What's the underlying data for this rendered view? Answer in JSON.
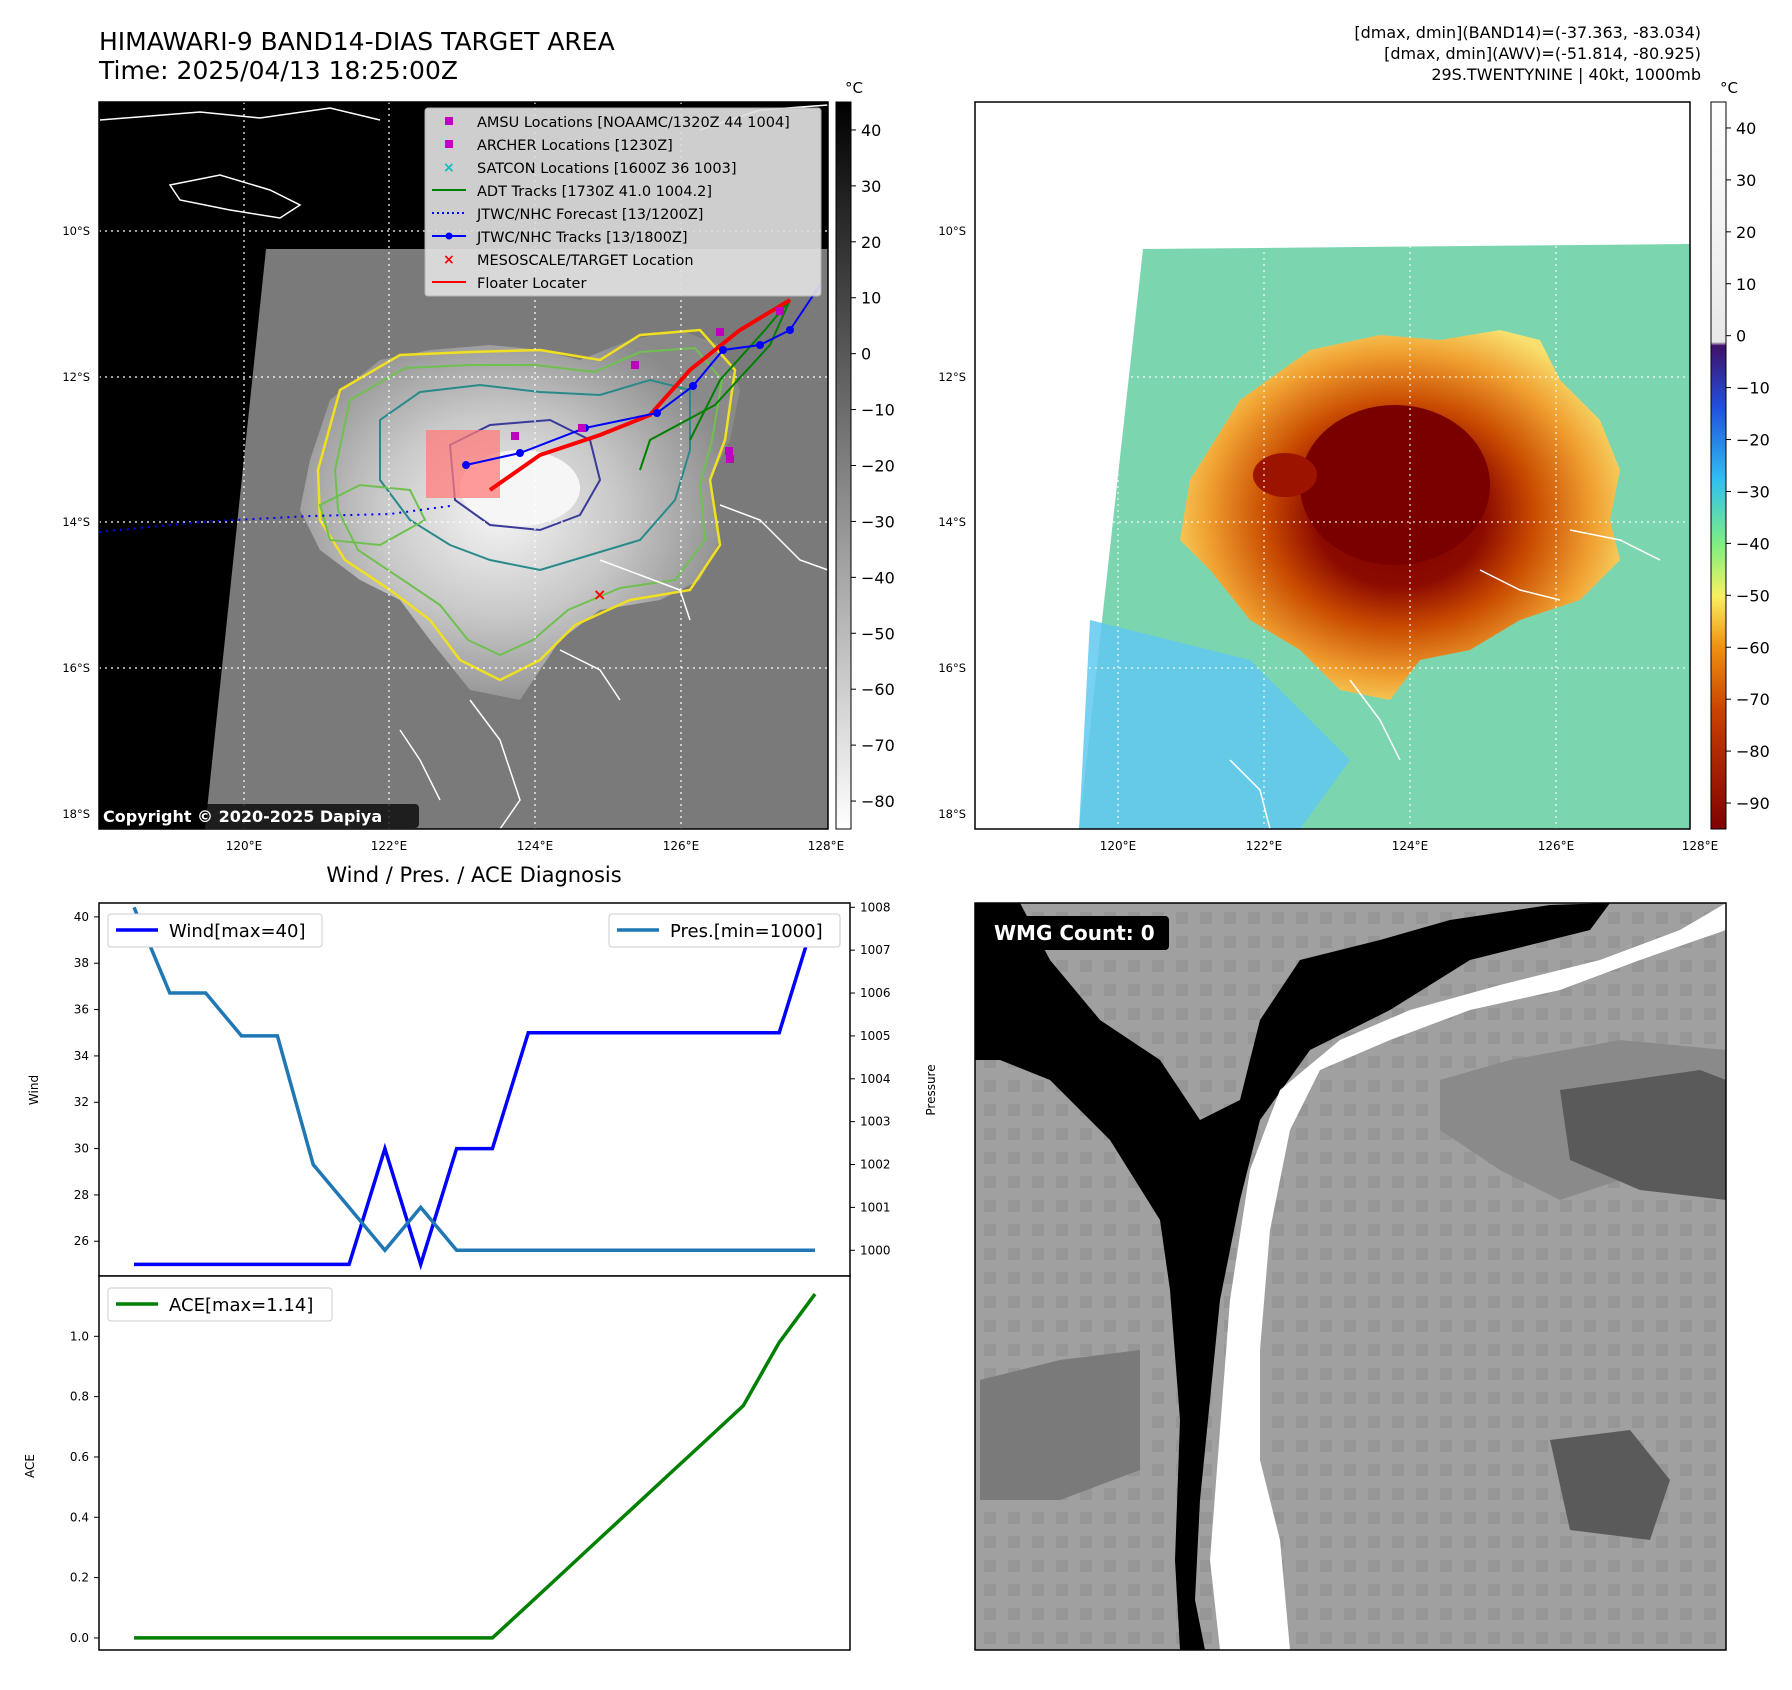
{
  "header": {
    "title": "HIMAWARI-9 BAND14-DIAS TARGET AREA",
    "time": "Time: 2025/04/13 18:25:00Z",
    "stats_band14": "[dmax, dmin](BAND14)=(-37.363, -83.034)",
    "stats_awv": "[dmax, dmin](AWV)=(-51.814, -80.925)",
    "storm_info": "29S.TWENTYNINE | 40kt, 1000mb",
    "copyright": "Copyright © 2020-2025 Dapiya"
  },
  "map": {
    "lat_labels": [
      "10°S",
      "12°S",
      "14°S",
      "16°S",
      "18°S"
    ],
    "lon_labels": [
      "120°E",
      "122°E",
      "124°E",
      "126°E",
      "128°E"
    ],
    "legend": [
      {
        "label": "AMSU Locations [NOAAMC/1320Z 44 1004]",
        "marker": "square",
        "color": "#c000c0"
      },
      {
        "label": "ARCHER Locations [1230Z]",
        "marker": "square",
        "color": "#c000c0"
      },
      {
        "label": "SATCON Locations [1600Z 36 1003]",
        "marker": "x",
        "color": "#00c0c0"
      },
      {
        "label": "ADT Tracks [1730Z 41.0 1004.2]",
        "marker": "line",
        "color": "#008000"
      },
      {
        "label": "JTWC/NHC Forecast [13/1200Z]",
        "marker": "dotted",
        "color": "#0000ff"
      },
      {
        "label": "JTWC/NHC Tracks [13/1800Z]",
        "marker": "line-dot",
        "color": "#0000ff"
      },
      {
        "label": "MESOSCALE/TARGET Location",
        "marker": "x",
        "color": "#ff0000"
      },
      {
        "label": "Floater Locater",
        "marker": "line",
        "color": "#ff0000"
      }
    ]
  },
  "colorbar_gray": {
    "unit": "°C",
    "ticks": [
      "40",
      "30",
      "20",
      "10",
      "0",
      "−10",
      "−20",
      "−30",
      "−40",
      "−50",
      "−60",
      "−70",
      "−80"
    ]
  },
  "colorbar_color": {
    "unit": "°C",
    "ticks": [
      "40",
      "30",
      "20",
      "10",
      "0",
      "−10",
      "−20",
      "−30",
      "−40",
      "−50",
      "−60",
      "−70",
      "−80",
      "−90"
    ]
  },
  "wmg": {
    "label": "WMG Count: 0"
  },
  "chart_data": [
    {
      "type": "line",
      "title": "Wind / Pres. / ACE Diagnosis",
      "x": [
        0,
        1,
        2,
        3,
        4,
        5,
        6,
        7,
        8,
        9,
        10,
        11,
        12,
        13,
        14,
        15,
        16,
        17,
        18,
        19
      ],
      "series": [
        {
          "name": "Wind[max=40]",
          "axis": "left",
          "color": "#0000ff",
          "values": [
            25,
            25,
            25,
            25,
            25,
            25,
            25,
            30,
            25,
            30,
            30,
            35,
            35,
            35,
            35,
            35,
            35,
            35,
            35,
            40
          ]
        },
        {
          "name": "Pres.[min=1000]",
          "axis": "right",
          "color": "#1f77b4",
          "values": [
            1008,
            1006,
            1006,
            1005,
            1005,
            1002,
            1001,
            1000,
            1001,
            1000,
            1000,
            1000,
            1000,
            1000,
            1000,
            1000,
            1000,
            1000,
            1000,
            1000
          ]
        }
      ],
      "ylabel": "Wind",
      "ylabel_right": "Pressure",
      "ylim": [
        24.5,
        40.6
      ],
      "ylim_right": [
        999.4,
        1008.1
      ],
      "yticks": [
        26,
        28,
        30,
        32,
        34,
        36,
        38,
        40
      ],
      "yticks_right": [
        1000,
        1001,
        1002,
        1003,
        1004,
        1005,
        1006,
        1007,
        1008
      ],
      "ytick_labels": [
        "26",
        "28",
        "30",
        "32",
        "34",
        "36",
        "38",
        "40"
      ],
      "ytick_labels_right": [
        "1000",
        "1001",
        "1002",
        "1003",
        "1004",
        "1005",
        "1006",
        "1007",
        "1008"
      ]
    },
    {
      "type": "line",
      "x": [
        0,
        1,
        2,
        3,
        4,
        5,
        6,
        7,
        8,
        9,
        10,
        11,
        12,
        13,
        14,
        15,
        16,
        17,
        18,
        19
      ],
      "series": [
        {
          "name": "ACE[max=1.14]",
          "color": "#008000",
          "values": [
            0,
            0,
            0,
            0,
            0,
            0,
            0,
            0,
            0,
            0,
            0,
            0.11,
            0.22,
            0.33,
            0.44,
            0.55,
            0.66,
            0.77,
            0.98,
            1.14
          ]
        }
      ],
      "ylabel": "ACE",
      "ylim": [
        -0.04,
        1.2
      ],
      "yticks": [
        0,
        0.2,
        0.4,
        0.6,
        0.8,
        1.0
      ],
      "ytick_labels": [
        "0.0",
        "0.2",
        "0.4",
        "0.6",
        "0.8",
        "1.0"
      ]
    }
  ]
}
